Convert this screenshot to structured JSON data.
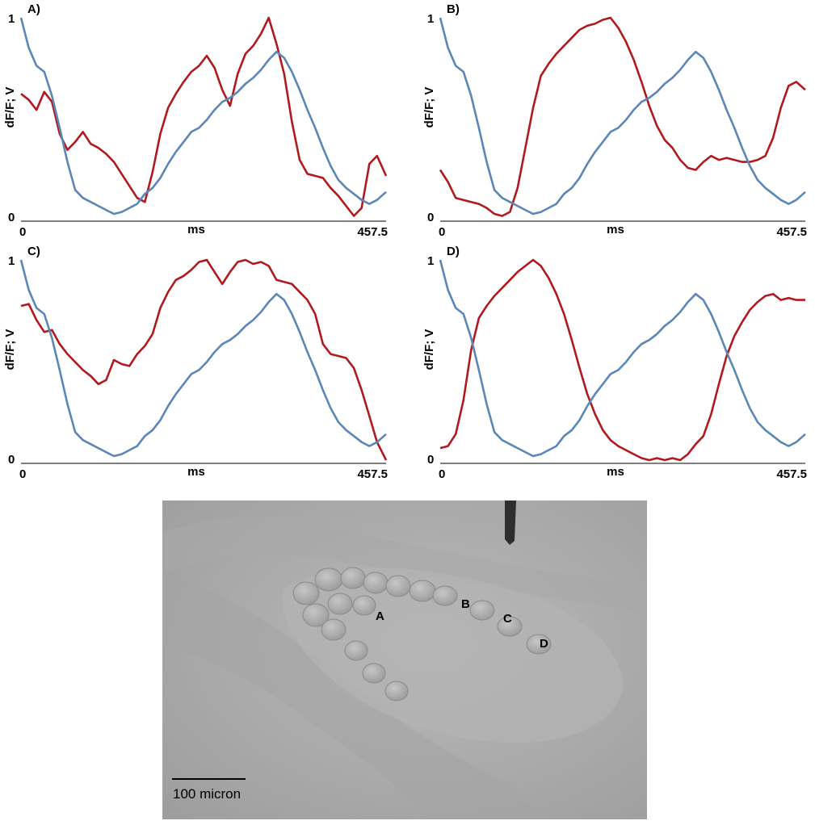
{
  "colors": {
    "vm_trace": "#b01a1e",
    "vf_trace": "#5b87b6",
    "axis": "#000000"
  },
  "chart_data": [
    {
      "type": "line",
      "panel_label": "A)",
      "ylabel": "dF/F; V",
      "xlabel": "ms",
      "x_tick_labels": [
        "0",
        "457.5"
      ],
      "y_tick_labels": [
        "0",
        "1"
      ],
      "xlim": [
        0,
        457.5
      ],
      "ylim": [
        0,
        1
      ],
      "grid": false,
      "series": [
        {
          "color": "#b01a1e",
          "x": [
            0,
            9.7,
            19.4,
            29.1,
            38.8,
            48.5,
            58.2,
            67.9,
            77.6,
            87.3,
            97,
            106.7,
            116.4,
            126.1,
            135.8,
            145.5,
            155.2,
            164.9,
            174.6,
            184.3,
            194,
            203.7,
            213.4,
            223.1,
            232.8,
            242.5,
            252.2,
            261.9,
            271.6,
            281.3,
            291,
            300.7,
            310.4,
            320.1,
            329.8,
            339.5,
            349.2,
            358.9,
            368.6,
            378.3,
            388,
            397.7,
            407.4,
            417.1,
            426.8,
            436.5,
            446.2,
            457.5
          ],
          "y": [
            0.62,
            0.59,
            0.54,
            0.63,
            0.58,
            0.42,
            0.34,
            0.38,
            0.43,
            0.37,
            0.35,
            0.32,
            0.28,
            0.22,
            0.16,
            0.1,
            0.08,
            0.23,
            0.42,
            0.55,
            0.62,
            0.68,
            0.73,
            0.76,
            0.81,
            0.75,
            0.64,
            0.56,
            0.72,
            0.82,
            0.86,
            0.92,
            1.0,
            0.87,
            0.72,
            0.48,
            0.29,
            0.22,
            0.21,
            0.2,
            0.15,
            0.11,
            0.06,
            0.01,
            0.05,
            0.27,
            0.31,
            0.21
          ]
        },
        {
          "color": "#5b87b6",
          "x": [
            0,
            9.7,
            19.4,
            29.1,
            38.8,
            48.5,
            58.2,
            67.9,
            77.6,
            87.3,
            97,
            106.7,
            116.4,
            126.1,
            135.8,
            145.5,
            155.2,
            164.9,
            174.6,
            184.3,
            194,
            203.7,
            213.4,
            223.1,
            232.8,
            242.5,
            252.2,
            261.9,
            271.6,
            281.3,
            291,
            300.7,
            310.4,
            320.1,
            329.8,
            339.5,
            349.2,
            358.9,
            368.6,
            378.3,
            388,
            397.7,
            407.4,
            417.1,
            426.8,
            436.5,
            446.2,
            457.5
          ],
          "y": [
            1.0,
            0.85,
            0.76,
            0.73,
            0.61,
            0.45,
            0.28,
            0.14,
            0.1,
            0.08,
            0.06,
            0.04,
            0.02,
            0.03,
            0.05,
            0.07,
            0.12,
            0.15,
            0.2,
            0.27,
            0.33,
            0.38,
            0.43,
            0.45,
            0.49,
            0.54,
            0.58,
            0.6,
            0.63,
            0.67,
            0.7,
            0.74,
            0.79,
            0.83,
            0.8,
            0.73,
            0.64,
            0.54,
            0.45,
            0.35,
            0.26,
            0.19,
            0.15,
            0.12,
            0.09,
            0.07,
            0.09,
            0.13
          ]
        }
      ]
    },
    {
      "type": "line",
      "panel_label": "B)",
      "ylabel": "dF/F; V",
      "xlabel": "ms",
      "x_tick_labels": [
        "0",
        "457.5"
      ],
      "y_tick_labels": [
        "0",
        "1"
      ],
      "xlim": [
        0,
        457.5
      ],
      "ylim": [
        0,
        1
      ],
      "grid": false,
      "series": [
        {
          "color": "#b01a1e",
          "x": [
            0,
            9.7,
            19.4,
            29.1,
            38.8,
            48.5,
            58.2,
            67.9,
            77.6,
            87.3,
            97,
            106.7,
            116.4,
            126.1,
            135.8,
            145.5,
            155.2,
            164.9,
            174.6,
            184.3,
            194,
            203.7,
            213.4,
            223.1,
            232.8,
            242.5,
            252.2,
            261.9,
            271.6,
            281.3,
            291,
            300.7,
            310.4,
            320.1,
            329.8,
            339.5,
            349.2,
            358.9,
            368.6,
            378.3,
            388,
            397.7,
            407.4,
            417.1,
            426.8,
            436.5,
            446.2,
            457.5
          ],
          "y": [
            0.24,
            0.18,
            0.1,
            0.09,
            0.08,
            0.07,
            0.05,
            0.02,
            0.01,
            0.03,
            0.15,
            0.35,
            0.55,
            0.71,
            0.77,
            0.82,
            0.86,
            0.9,
            0.94,
            0.96,
            0.97,
            0.99,
            1.0,
            0.95,
            0.88,
            0.79,
            0.68,
            0.56,
            0.46,
            0.39,
            0.35,
            0.29,
            0.25,
            0.24,
            0.28,
            0.31,
            0.29,
            0.3,
            0.29,
            0.28,
            0.28,
            0.29,
            0.31,
            0.4,
            0.55,
            0.66,
            0.68,
            0.64
          ]
        },
        {
          "color": "#5b87b6",
          "x": [
            0,
            9.7,
            19.4,
            29.1,
            38.8,
            48.5,
            58.2,
            67.9,
            77.6,
            87.3,
            97,
            106.7,
            116.4,
            126.1,
            135.8,
            145.5,
            155.2,
            164.9,
            174.6,
            184.3,
            194,
            203.7,
            213.4,
            223.1,
            232.8,
            242.5,
            252.2,
            261.9,
            271.6,
            281.3,
            291,
            300.7,
            310.4,
            320.1,
            329.8,
            339.5,
            349.2,
            358.9,
            368.6,
            378.3,
            388,
            397.7,
            407.4,
            417.1,
            426.8,
            436.5,
            446.2,
            457.5
          ],
          "y": [
            1.0,
            0.85,
            0.76,
            0.73,
            0.61,
            0.45,
            0.28,
            0.14,
            0.1,
            0.08,
            0.06,
            0.04,
            0.02,
            0.03,
            0.05,
            0.07,
            0.12,
            0.15,
            0.2,
            0.27,
            0.33,
            0.38,
            0.43,
            0.45,
            0.49,
            0.54,
            0.58,
            0.6,
            0.63,
            0.67,
            0.7,
            0.74,
            0.79,
            0.83,
            0.8,
            0.73,
            0.64,
            0.54,
            0.45,
            0.35,
            0.26,
            0.19,
            0.15,
            0.12,
            0.09,
            0.07,
            0.09,
            0.13
          ]
        }
      ]
    },
    {
      "type": "line",
      "panel_label": "C)",
      "ylabel": "dF/F; V",
      "xlabel": "ms",
      "x_tick_labels": [
        "0",
        "457.5"
      ],
      "y_tick_labels": [
        "0",
        "1"
      ],
      "xlim": [
        0,
        457.5
      ],
      "ylim": [
        0,
        1
      ],
      "grid": false,
      "series": [
        {
          "color": "#b01a1e",
          "x": [
            0,
            9.7,
            19.4,
            29.1,
            38.8,
            48.5,
            58.2,
            67.9,
            77.6,
            87.3,
            97,
            106.7,
            116.4,
            126.1,
            135.8,
            145.5,
            155.2,
            164.9,
            174.6,
            184.3,
            194,
            203.7,
            213.4,
            223.1,
            232.8,
            242.5,
            252.2,
            261.9,
            271.6,
            281.3,
            291,
            300.7,
            310.4,
            320.1,
            329.8,
            339.5,
            349.2,
            358.9,
            368.6,
            378.3,
            388,
            397.7,
            407.4,
            417.1,
            426.8,
            436.5,
            446.2,
            457.5
          ],
          "y": [
            0.77,
            0.78,
            0.7,
            0.64,
            0.65,
            0.58,
            0.53,
            0.49,
            0.45,
            0.42,
            0.38,
            0.4,
            0.5,
            0.48,
            0.47,
            0.53,
            0.57,
            0.63,
            0.76,
            0.84,
            0.9,
            0.92,
            0.95,
            0.99,
            1.0,
            0.94,
            0.88,
            0.94,
            0.99,
            1.0,
            0.98,
            0.99,
            0.97,
            0.9,
            0.89,
            0.88,
            0.84,
            0.8,
            0.73,
            0.58,
            0.53,
            0.52,
            0.51,
            0.46,
            0.35,
            0.22,
            0.09,
            0.0
          ]
        },
        {
          "color": "#5b87b6",
          "x": [
            0,
            9.7,
            19.4,
            29.1,
            38.8,
            48.5,
            58.2,
            67.9,
            77.6,
            87.3,
            97,
            106.7,
            116.4,
            126.1,
            135.8,
            145.5,
            155.2,
            164.9,
            174.6,
            184.3,
            194,
            203.7,
            213.4,
            223.1,
            232.8,
            242.5,
            252.2,
            261.9,
            271.6,
            281.3,
            291,
            300.7,
            310.4,
            320.1,
            329.8,
            339.5,
            349.2,
            358.9,
            368.6,
            378.3,
            388,
            397.7,
            407.4,
            417.1,
            426.8,
            436.5,
            446.2,
            457.5
          ],
          "y": [
            1.0,
            0.85,
            0.76,
            0.73,
            0.61,
            0.45,
            0.28,
            0.14,
            0.1,
            0.08,
            0.06,
            0.04,
            0.02,
            0.03,
            0.05,
            0.07,
            0.12,
            0.15,
            0.2,
            0.27,
            0.33,
            0.38,
            0.43,
            0.45,
            0.49,
            0.54,
            0.58,
            0.6,
            0.63,
            0.67,
            0.7,
            0.74,
            0.79,
            0.83,
            0.8,
            0.73,
            0.64,
            0.54,
            0.45,
            0.35,
            0.26,
            0.19,
            0.15,
            0.12,
            0.09,
            0.07,
            0.09,
            0.13
          ]
        }
      ]
    },
    {
      "type": "line",
      "panel_label": "D)",
      "ylabel": "dF/F; V",
      "xlabel": "ms",
      "x_tick_labels": [
        "0",
        "457.5"
      ],
      "y_tick_labels": [
        "0",
        "1"
      ],
      "xlim": [
        0,
        457.5
      ],
      "ylim": [
        0,
        1
      ],
      "grid": false,
      "series": [
        {
          "color": "#b01a1e",
          "x": [
            0,
            9.7,
            19.4,
            29.1,
            38.8,
            48.5,
            58.2,
            67.9,
            77.6,
            87.3,
            97,
            106.7,
            116.4,
            126.1,
            135.8,
            145.5,
            155.2,
            164.9,
            174.6,
            184.3,
            194,
            203.7,
            213.4,
            223.1,
            232.8,
            242.5,
            252.2,
            261.9,
            271.6,
            281.3,
            291,
            300.7,
            310.4,
            320.1,
            329.8,
            339.5,
            349.2,
            358.9,
            368.6,
            378.3,
            388,
            397.7,
            407.4,
            417.1,
            426.8,
            436.5,
            446.2,
            457.5
          ],
          "y": [
            0.06,
            0.07,
            0.13,
            0.3,
            0.55,
            0.71,
            0.77,
            0.82,
            0.86,
            0.9,
            0.94,
            0.97,
            1.0,
            0.97,
            0.91,
            0.83,
            0.73,
            0.6,
            0.46,
            0.33,
            0.23,
            0.15,
            0.1,
            0.07,
            0.05,
            0.03,
            0.01,
            0.0,
            0.01,
            0.0,
            0.01,
            0.0,
            0.03,
            0.08,
            0.12,
            0.23,
            0.38,
            0.52,
            0.62,
            0.69,
            0.75,
            0.79,
            0.82,
            0.83,
            0.8,
            0.81,
            0.8,
            0.8
          ]
        },
        {
          "color": "#5b87b6",
          "x": [
            0,
            9.7,
            19.4,
            29.1,
            38.8,
            48.5,
            58.2,
            67.9,
            77.6,
            87.3,
            97,
            106.7,
            116.4,
            126.1,
            135.8,
            145.5,
            155.2,
            164.9,
            174.6,
            184.3,
            194,
            203.7,
            213.4,
            223.1,
            232.8,
            242.5,
            252.2,
            261.9,
            271.6,
            281.3,
            291,
            300.7,
            310.4,
            320.1,
            329.8,
            339.5,
            349.2,
            358.9,
            368.6,
            378.3,
            388,
            397.7,
            407.4,
            417.1,
            426.8,
            436.5,
            446.2,
            457.5
          ],
          "y": [
            1.0,
            0.85,
            0.76,
            0.73,
            0.61,
            0.45,
            0.28,
            0.14,
            0.1,
            0.08,
            0.06,
            0.04,
            0.02,
            0.03,
            0.05,
            0.07,
            0.12,
            0.15,
            0.2,
            0.27,
            0.33,
            0.38,
            0.43,
            0.45,
            0.49,
            0.54,
            0.58,
            0.6,
            0.63,
            0.67,
            0.7,
            0.74,
            0.79,
            0.83,
            0.8,
            0.73,
            0.64,
            0.54,
            0.45,
            0.35,
            0.26,
            0.19,
            0.15,
            0.12,
            0.09,
            0.07,
            0.09,
            0.13
          ]
        }
      ]
    }
  ],
  "micrograph": {
    "point_labels": [
      "A",
      "B",
      "C",
      "D"
    ],
    "scale_bar_label": "100 micron"
  }
}
